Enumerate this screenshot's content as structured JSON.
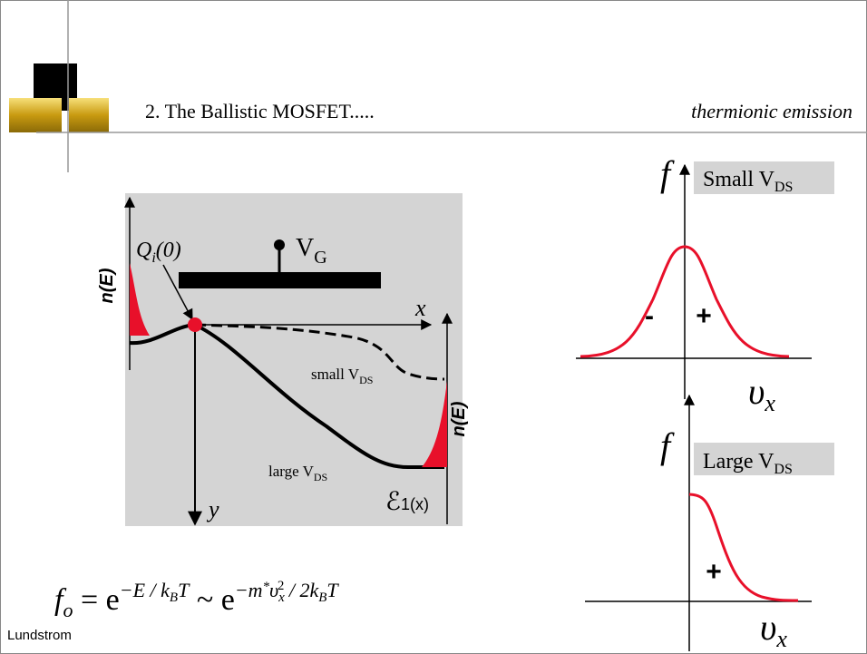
{
  "header": {
    "title": "2. The Ballistic MOSFET.....",
    "topic": "thermionic emission"
  },
  "diagram": {
    "charge_label": {
      "base": "Q",
      "sub": "i",
      "rest": "(0)"
    },
    "gate_label": {
      "base": "V",
      "sub": "G"
    },
    "x_axis": "x",
    "y_axis": "y",
    "source_dos": "n(E)",
    "drain_dos": "n(E)",
    "small_curve": {
      "base": "small V",
      "sub": "DS"
    },
    "large_curve": {
      "base": "large V",
      "sub": "DS"
    },
    "subband": {
      "base": "ℰ",
      "sub": "1",
      "rest": "(x)"
    }
  },
  "plots": [
    {
      "y_axis": "f",
      "label": {
        "base": "Small V",
        "sub": "DS"
      },
      "x_axis": {
        "base": "υ",
        "sub": "x"
      },
      "signs": [
        "-",
        "+"
      ]
    },
    {
      "y_axis": "f",
      "label": {
        "base": "Large V",
        "sub": "DS"
      },
      "x_axis": {
        "base": "υ",
        "sub": "x"
      },
      "signs": [
        "+"
      ]
    }
  ],
  "formula": {
    "parts": [
      "f",
      "o",
      " = e",
      "−E / k",
      "B",
      "T",
      " ~ e",
      "−m",
      "*",
      "υ",
      "x",
      "2",
      " / 2k",
      "B",
      "T"
    ]
  },
  "footer": "Lundstrom"
}
